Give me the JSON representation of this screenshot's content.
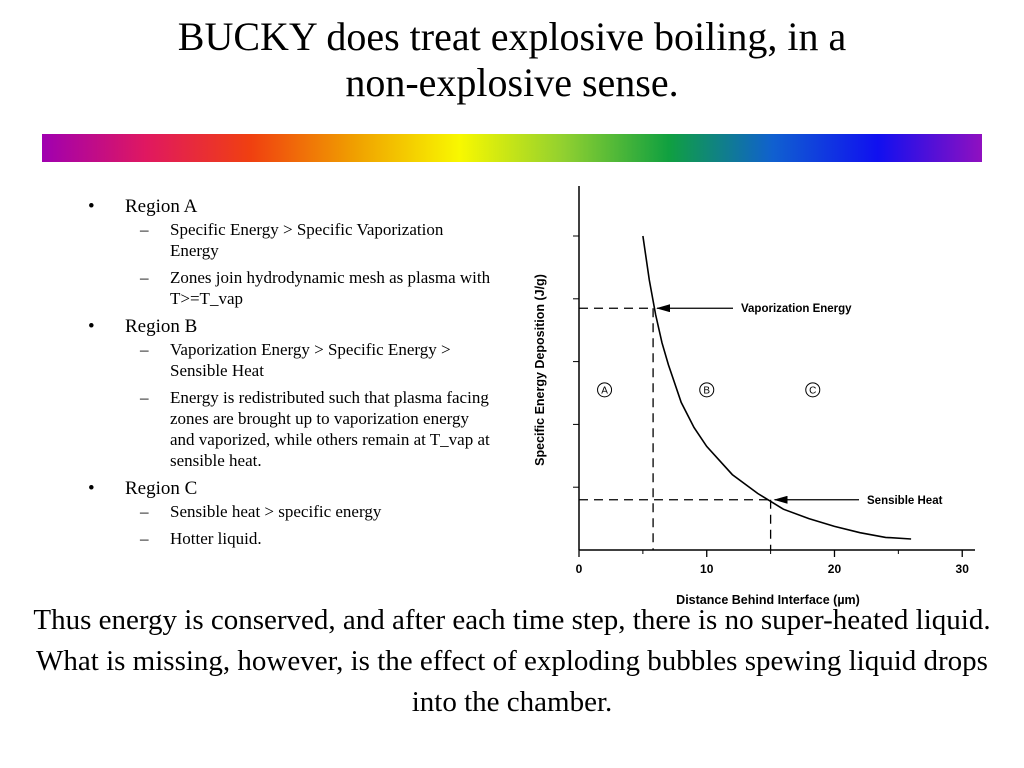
{
  "slide": {
    "title_line1": "BUCKY does treat explosive boiling, in a",
    "title_line2": "non-explosive sense.",
    "rainbow_colors": [
      "#a000b0",
      "#e01860",
      "#f04010",
      "#f0a000",
      "#f8f800",
      "#90d030",
      "#10a040",
      "#1060d0",
      "#1010f0",
      "#9010c0"
    ]
  },
  "bullets": [
    {
      "label": "Region A",
      "subs": [
        "Specific Energy > Specific Vaporization Energy",
        "Zones join hydrodynamic mesh as plasma with T>=T_vap"
      ]
    },
    {
      "label": "Region B",
      "subs": [
        "Vaporization Energy > Specific Energy > Sensible Heat",
        "Energy is redistributed such that plasma facing zones are brought up to vaporization energy and vaporized, while others remain at T_vap at sensible heat."
      ]
    },
    {
      "label": "Region C",
      "subs": [
        "Sensible heat > specific energy",
        "Hotter liquid."
      ]
    }
  ],
  "bullet_char": "•",
  "dash_char": "–",
  "chart_data": {
    "type": "line",
    "xlabel": "Distance Behind Interface (µm)",
    "ylabel": "Specific Energy Deposition (J/g)",
    "xlim": [
      0,
      31
    ],
    "x_ticks": [
      0,
      10,
      20,
      30
    ],
    "y_ticks_unlabeled": true,
    "grid": false,
    "series": [
      {
        "x": [
          5,
          5.5,
          6,
          6.5,
          7,
          8,
          9,
          10,
          12,
          14,
          16,
          18,
          20,
          22,
          24,
          26
        ],
        "y": [
          1.0,
          0.86,
          0.75,
          0.66,
          0.59,
          0.47,
          0.39,
          0.33,
          0.24,
          0.18,
          0.13,
          0.1,
          0.075,
          0.055,
          0.04,
          0.035
        ]
      }
    ],
    "reference_levels": [
      {
        "label": "Vaporization Energy",
        "x": 5.8,
        "y": 0.77
      },
      {
        "label": "Sensible Heat",
        "x": 15,
        "y": 0.16
      }
    ],
    "region_labels": [
      {
        "label": "A",
        "x": 2,
        "y": 0.51
      },
      {
        "label": "B",
        "x": 10,
        "y": 0.51
      },
      {
        "label": "C",
        "x": 18.3,
        "y": 0.51
      }
    ]
  },
  "conclusion": "Thus energy is conserved, and after each time step, there is no super-heated liquid.  What is missing, however, is the effect of exploding bubbles spewing liquid drops into the chamber."
}
